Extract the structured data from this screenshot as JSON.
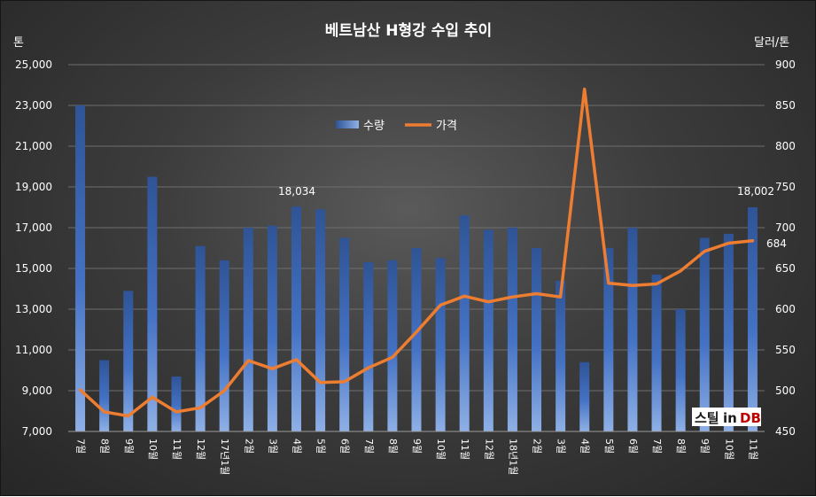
{
  "chart_data": {
    "type": "bar+line",
    "title": "베트남산 H형강 수입 추이",
    "y_left_unit": "톤",
    "y_right_unit": "달러/톤",
    "y_left_ticks": [
      "25,000",
      "23,000",
      "21,000",
      "19,000",
      "17,000",
      "15,000",
      "13,000",
      "11,000",
      "9,000",
      "7,000"
    ],
    "y_right_ticks": [
      "900",
      "850",
      "800",
      "750",
      "700",
      "650",
      "600",
      "550",
      "500",
      "450"
    ],
    "ylim_left": [
      7000,
      25000
    ],
    "ylim_right": [
      450,
      900
    ],
    "grid": true,
    "legend_position": "top-center",
    "categories": [
      "7월",
      "8월",
      "9월",
      "10월",
      "11월",
      "12월",
      "17년1월",
      "2월",
      "3월",
      "4월",
      "5월",
      "6월",
      "7월",
      "8월",
      "9월",
      "10월",
      "11월",
      "12월",
      "18년1월",
      "2월",
      "3월",
      "4월",
      "5월",
      "6월",
      "7월",
      "8월",
      "9월",
      "10월",
      "11월"
    ],
    "series": [
      {
        "name": "수량",
        "kind": "bar",
        "axis": "left",
        "color": "#4472c4",
        "values": [
          23000,
          10500,
          13900,
          19500,
          9700,
          16100,
          15400,
          17000,
          17100,
          18034,
          17900,
          16500,
          15300,
          15400,
          16000,
          15500,
          17600,
          16900,
          17000,
          16000,
          14400,
          10400,
          16000,
          17000,
          14700,
          13000,
          16500,
          16700,
          18002
        ]
      },
      {
        "name": "가격",
        "kind": "line",
        "axis": "right",
        "color": "#ed7d31",
        "values": [
          501,
          474,
          469,
          492,
          474,
          479,
          500,
          537,
          527,
          538,
          510,
          511,
          528,
          541,
          572,
          605,
          616,
          609,
          615,
          619,
          615,
          870,
          632,
          629,
          631,
          647,
          671,
          681,
          684
        ]
      }
    ],
    "annotations": [
      "18,034",
      "18,002",
      "684"
    ]
  },
  "brand": {
    "text_a": "스틸",
    "text_b": "in",
    "text_c": "DB"
  }
}
